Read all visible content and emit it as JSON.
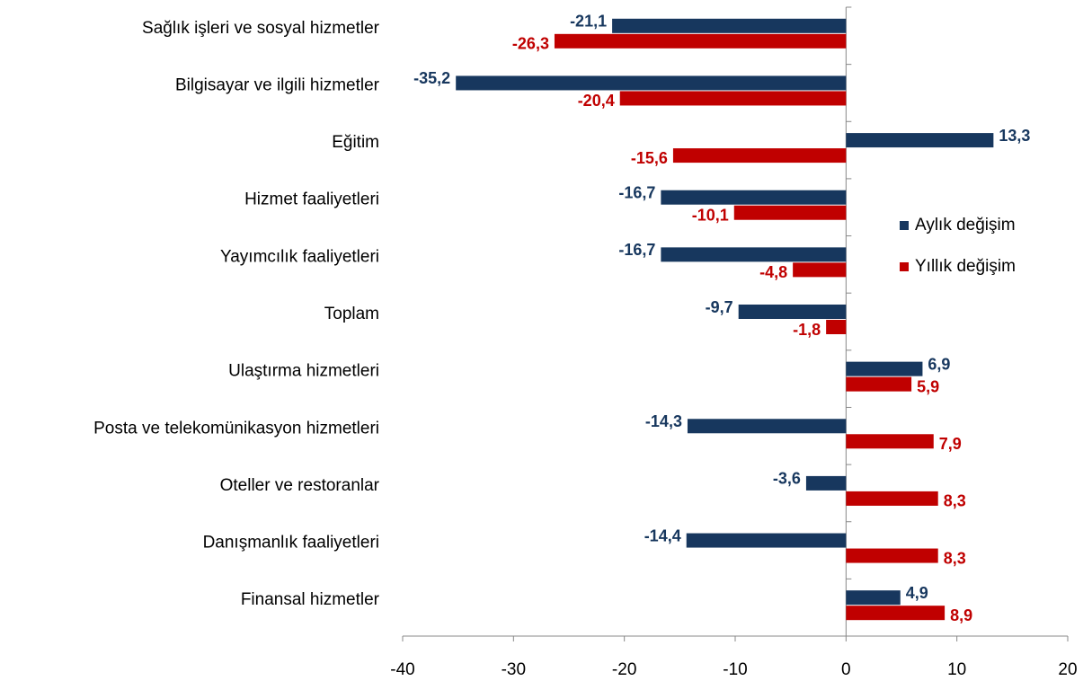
{
  "chart_data": {
    "type": "hbar",
    "categories": [
      "Sağlık işleri ve sosyal hizmetler",
      "Bilgisayar ve ilgili hizmetler",
      "Eğitim",
      "Hizmet faaliyetleri",
      "Yayımcılık faaliyetleri",
      "Toplam",
      "Ulaştırma hizmetleri",
      "Posta ve telekomünikasyon hizmetleri",
      "Oteller ve restoranlar",
      "Danışmanlık faaliyetleri",
      "Finansal hizmetler"
    ],
    "series": [
      {
        "name": "Aylık değişim",
        "color": "#17375e",
        "values": [
          -21.1,
          -35.2,
          13.3,
          -16.7,
          -16.7,
          -9.7,
          6.9,
          -14.3,
          -3.6,
          -14.4,
          4.9
        ],
        "value_labels": [
          "-21,1",
          "-35,2",
          "13,3",
          "-16,7",
          "-16,7",
          "-9,7",
          "6,9",
          "-14,3",
          "-3,6",
          "-14,4",
          "4,9"
        ]
      },
      {
        "name": "Yıllık değişim",
        "color": "#c00000",
        "values": [
          -26.3,
          -20.4,
          -15.6,
          -10.1,
          -4.8,
          -1.8,
          5.9,
          7.9,
          8.3,
          8.3,
          8.9
        ],
        "value_labels": [
          "-26,3",
          "-20,4",
          "-15,6",
          "-10,1",
          "-4,8",
          "-1,8",
          "5,9",
          "7,9",
          "8,3",
          "8,3",
          "8,9"
        ]
      }
    ],
    "xlim": [
      -40,
      20
    ],
    "xticks": [
      -40,
      -30,
      -20,
      -10,
      0,
      10,
      20
    ]
  }
}
